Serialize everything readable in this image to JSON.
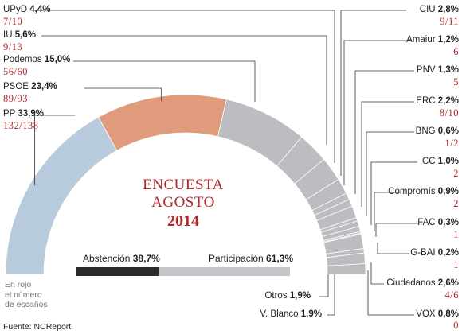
{
  "chart_data": {
    "type": "semicircle-pie",
    "title": "ENCUESTA AGOSTO 2014",
    "title_lines": [
      "ENCUESTA",
      "AGOSTO",
      "2014"
    ],
    "note_lines": [
      "En rojo",
      "el número",
      "de escaños"
    ],
    "source": "Fuente: NCReport",
    "slices": [
      {
        "name": "PP",
        "pct_label": "33,9%",
        "value": 33.9,
        "seats": "132/138",
        "color": "#b7cbdc"
      },
      {
        "name": "PSOE",
        "pct_label": "23,4%",
        "value": 23.4,
        "seats": "89/93",
        "color": "#e09a7c"
      },
      {
        "name": "Podemos",
        "pct_label": "15,0%",
        "value": 15.0,
        "seats": "56/60",
        "color": "#bcbdc0"
      },
      {
        "name": "IU",
        "pct_label": "5,6%",
        "value": 5.6,
        "seats": "9/13",
        "color": "#bcbdc0"
      },
      {
        "name": "UPyD",
        "pct_label": "4,4%",
        "value": 4.4,
        "seats": "7/10",
        "color": "#bcbdc0"
      },
      {
        "name": "CIU",
        "pct_label": "2,8%",
        "value": 2.8,
        "seats": "9/11",
        "color": "#bcbdc0"
      },
      {
        "name": "Amaiur",
        "pct_label": "1,2%",
        "value": 1.2,
        "seats": "6",
        "color": "#bcbdc0"
      },
      {
        "name": "PNV",
        "pct_label": "1,3%",
        "value": 1.3,
        "seats": "5",
        "color": "#bcbdc0"
      },
      {
        "name": "ERC",
        "pct_label": "2,2%",
        "value": 2.2,
        "seats": "8/10",
        "color": "#bcbdc0"
      },
      {
        "name": "BNG",
        "pct_label": "0,6%",
        "value": 0.6,
        "seats": "1/2",
        "color": "#bcbdc0"
      },
      {
        "name": "CC",
        "pct_label": "1,0%",
        "value": 1.0,
        "seats": "2",
        "color": "#bcbdc0"
      },
      {
        "name": "Compromís",
        "pct_label": "0,9%",
        "value": 0.9,
        "seats": "2",
        "color": "#bcbdc0"
      },
      {
        "name": "FAC",
        "pct_label": "0,3%",
        "value": 0.3,
        "seats": "1",
        "color": "#bcbdc0"
      },
      {
        "name": "G-BAI",
        "pct_label": "0,2%",
        "value": 0.2,
        "seats": "1",
        "color": "#bcbdc0"
      },
      {
        "name": "Ciudadanos",
        "pct_label": "2,6%",
        "value": 2.6,
        "seats": "4/6",
        "color": "#bcbdc0"
      },
      {
        "name": "VOX",
        "pct_label": "0,8%",
        "value": 0.8,
        "seats": "0",
        "color": "#bcbdc0"
      },
      {
        "name": "V. Blanco",
        "pct_label": "1,9%",
        "value": 1.9,
        "seats": "",
        "color": "#bcbdc0"
      },
      {
        "name": "Otros",
        "pct_label": "1,9%",
        "value": 1.9,
        "seats": "",
        "color": "#bcbdc0"
      }
    ],
    "participation": {
      "abstention_label": "Abstención",
      "abstention_pct": "38,7%",
      "abstention_value": 38.7,
      "participation_label": "Participación",
      "participation_pct": "61,3%",
      "participation_value": 61.3,
      "abstention_color": "#2b2b2e",
      "participation_color": "#c4c5c8"
    }
  }
}
